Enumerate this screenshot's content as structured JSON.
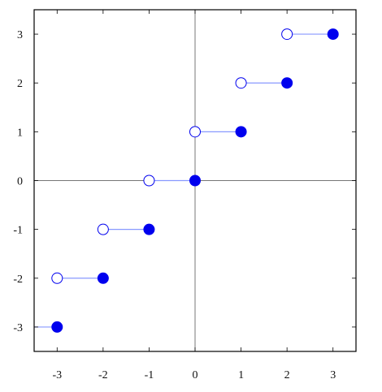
{
  "chart_data": {
    "type": "scatter",
    "title": "",
    "xlabel": "",
    "ylabel": "",
    "xlim": [
      -3.5,
      3.5
    ],
    "ylim": [
      -3.5,
      3.5
    ],
    "xticks": [
      -3,
      -2,
      -1,
      0,
      1,
      2,
      3
    ],
    "yticks": [
      -3,
      -2,
      -1,
      0,
      1,
      2,
      3
    ],
    "xtick_labels": [
      "-3",
      "-2",
      "-1",
      "0",
      "1",
      "2",
      "3"
    ],
    "ytick_labels": [
      "-3",
      "-2",
      "-1",
      "0",
      "1",
      "2",
      "3"
    ],
    "grid": false,
    "zero_lines": true,
    "series": [
      {
        "style": "step-segments",
        "segments": [
          {
            "x_start": -3.5,
            "x_end": -3,
            "y": -3,
            "open_start": false,
            "closed_end": true
          },
          {
            "x_start": -3,
            "x_end": -2,
            "y": -2,
            "open_start": true,
            "closed_end": true
          },
          {
            "x_start": -2,
            "x_end": -1,
            "y": -1,
            "open_start": true,
            "closed_end": true
          },
          {
            "x_start": -1,
            "x_end": 0,
            "y": 0,
            "open_start": true,
            "closed_end": true
          },
          {
            "x_start": 0,
            "x_end": 1,
            "y": 1,
            "open_start": true,
            "closed_end": true
          },
          {
            "x_start": 1,
            "x_end": 2,
            "y": 2,
            "open_start": true,
            "closed_end": true
          },
          {
            "x_start": 2,
            "x_end": 3,
            "y": 3,
            "open_start": true,
            "closed_end": true
          }
        ]
      }
    ]
  },
  "colors": {
    "series": "#0000ee",
    "segment": "#8899ff",
    "frame": "#000000",
    "zero_line": "#777777"
  }
}
